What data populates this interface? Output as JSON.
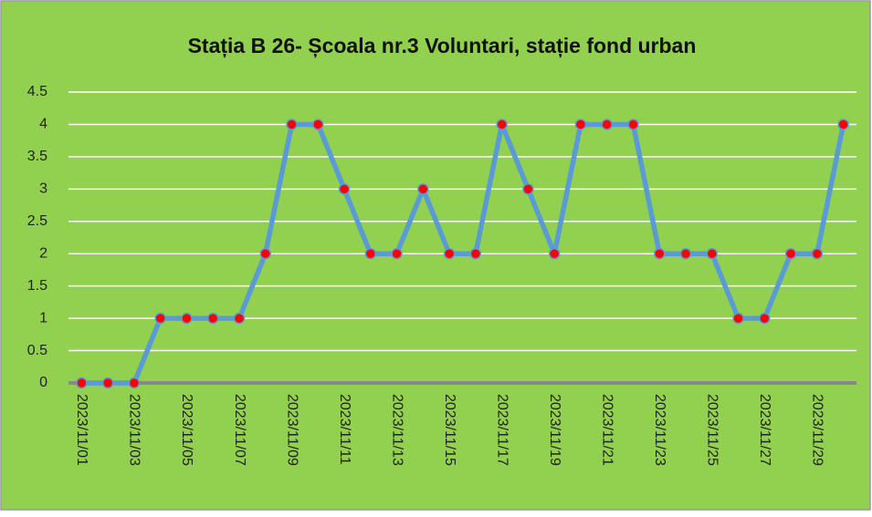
{
  "chart_data": {
    "type": "line",
    "title": "Stația B 26- Școala  nr.3 Voluntari, stație fond urban",
    "categories": [
      "2023/11/01",
      null,
      "2023/11/03",
      null,
      "2023/11/05",
      null,
      "2023/11/07",
      null,
      "2023/11/09",
      null,
      "2023/11/11",
      null,
      "2023/11/13",
      null,
      "2023/11/15",
      null,
      "2023/11/17",
      null,
      "2023/11/19",
      null,
      "2023/11/21",
      null,
      "2023/11/23",
      null,
      "2023/11/25",
      null,
      "2023/11/27",
      null,
      "2023/11/29",
      null
    ],
    "values": [
      0,
      0,
      0,
      1,
      1,
      1,
      1,
      2,
      4,
      4,
      3,
      2,
      2,
      3,
      2,
      2,
      4,
      3,
      2,
      4,
      4,
      4,
      2,
      2,
      2,
      1,
      1,
      2,
      2,
      4
    ],
    "color": "#5b9bd5",
    "marker_color": "#ff0000",
    "background": "#92d050",
    "ylim": [
      0,
      4.5
    ],
    "yticks": [
      0,
      0.5,
      1,
      1.5,
      2,
      2.5,
      3,
      3.5,
      4,
      4.5
    ],
    "grid": true
  }
}
